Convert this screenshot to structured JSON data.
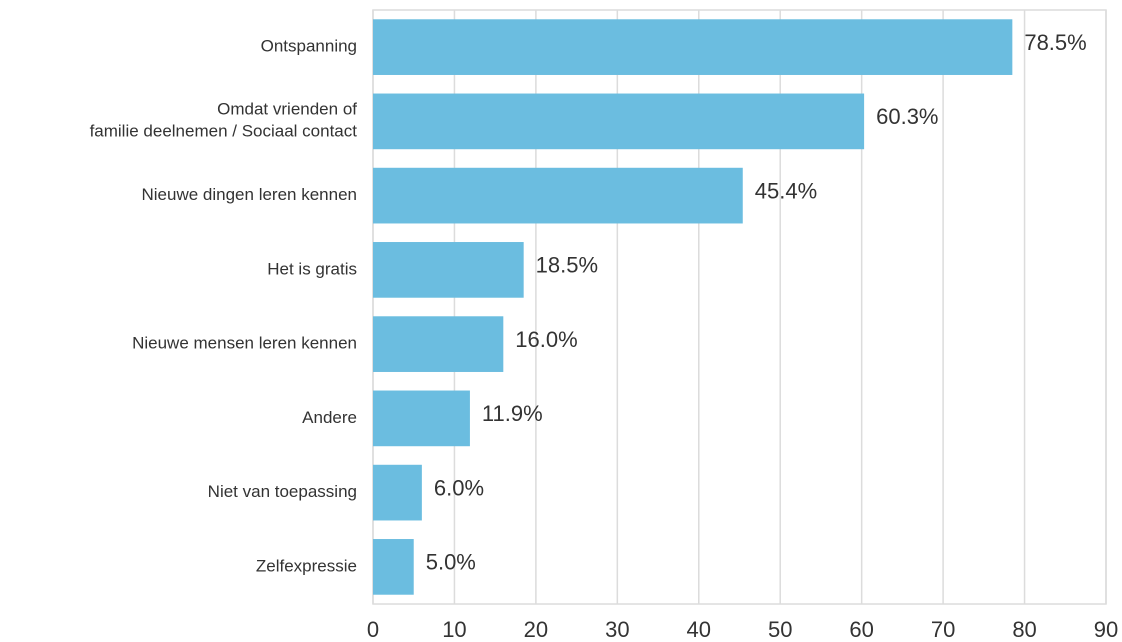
{
  "chart_data": {
    "type": "barh",
    "categories": [
      "Ontspanning",
      "Omdat vrienden of\nfamilie deelnemen / Sociaal contact",
      "Nieuwe dingen leren kennen",
      "Het is gratis",
      "Nieuwe mensen leren kennen",
      "Andere",
      "Niet van toepassing",
      "Zelfexpressie"
    ],
    "values": [
      78.5,
      60.3,
      45.4,
      18.5,
      16.0,
      11.9,
      6.0,
      5.0
    ],
    "value_labels": [
      "78.5%",
      "60.3%",
      "45.4%",
      "18.5%",
      "16.0%",
      "11.9%",
      "6.0%",
      "5.0%"
    ],
    "color": "#6bbde0",
    "xlim": [
      0,
      90
    ],
    "xticks": [
      0,
      10,
      20,
      30,
      40,
      50,
      60,
      70,
      80,
      90
    ],
    "grid": true
  }
}
